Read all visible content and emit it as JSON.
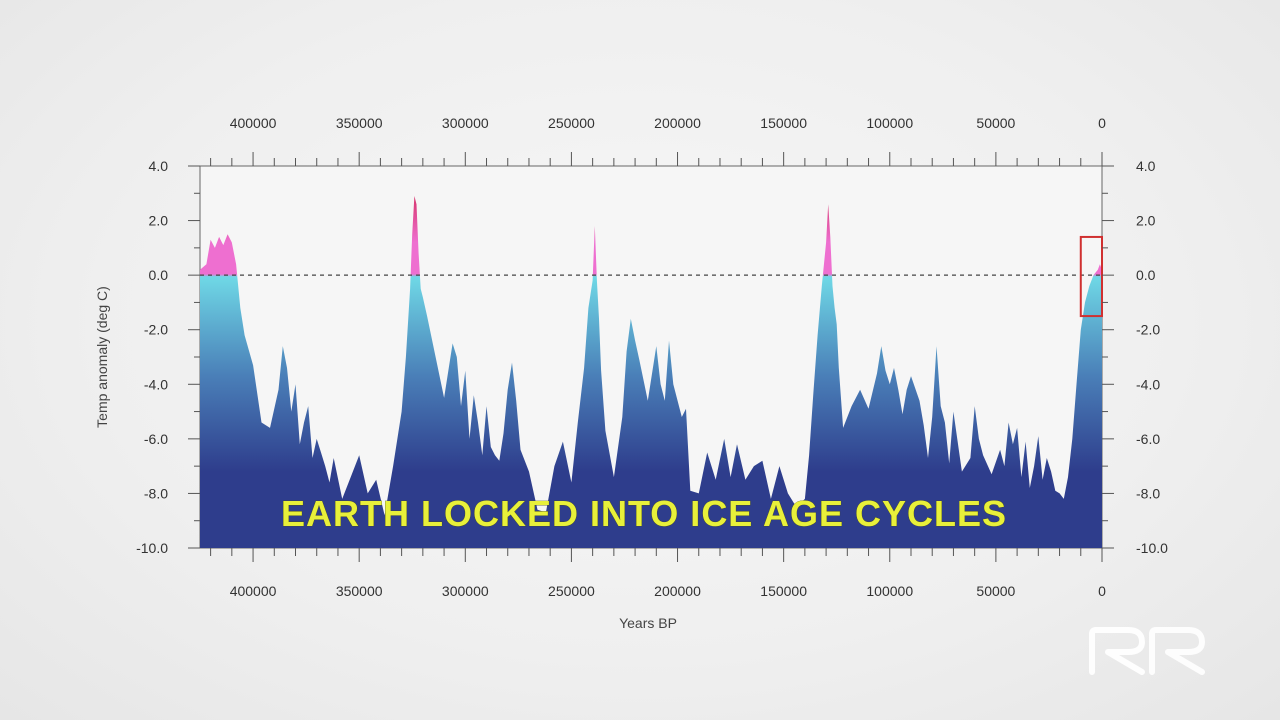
{
  "chart_data": {
    "type": "area",
    "title": "",
    "caption": "EARTH LOCKED INTO ICE AGE CYCLES",
    "xlabel": "Years BP",
    "ylabel": "Temp anomaly (deg C)",
    "xlim": [
      425000,
      0
    ],
    "ylim": [
      -10.0,
      4.0
    ],
    "x_ticks": [
      400000,
      350000,
      300000,
      250000,
      200000,
      150000,
      100000,
      50000,
      0
    ],
    "x_tick_labels": [
      "400000",
      "350000",
      "300000",
      "250000",
      "200000",
      "150000",
      "100000",
      "50000",
      "0"
    ],
    "y_ticks": [
      4.0,
      2.0,
      0.0,
      -2.0,
      -4.0,
      -6.0,
      -8.0,
      -10.0
    ],
    "y_tick_labels": [
      "4.0",
      "2.0",
      "0.0",
      "-2.0",
      "-4.0",
      "-6.0",
      "-8.0",
      "-10.0"
    ],
    "reference_line": 0.0,
    "highlight_box": {
      "x": [
        10000,
        0
      ],
      "y": [
        -1.5,
        1.4
      ]
    },
    "colors": {
      "cold": "#2e3d8c",
      "mid": "#4a7fb8",
      "cool": "#6fd8e6",
      "warm": "#ee6fd0",
      "hot": "#c8102e",
      "box": "#d03030"
    },
    "series": [
      {
        "x": [
          425000,
          422000,
          420000,
          418000,
          416000,
          414000,
          412000,
          410000,
          408000,
          406000,
          404000,
          400000,
          396000,
          392000,
          388000,
          386000,
          384000,
          382000,
          380000,
          378000,
          376000,
          374000,
          372000,
          370000,
          368000,
          366000,
          364000,
          362000,
          358000,
          354000,
          350000,
          346000,
          342000,
          338000,
          334000,
          330000,
          328000,
          326000,
          325000,
          324000,
          323000,
          322000,
          321000,
          320000,
          318000,
          314000,
          310000,
          306000,
          304000,
          302000,
          300000,
          298000,
          296000,
          294000,
          292000,
          290000,
          288000,
          286000,
          284000,
          282000,
          280000,
          278000,
          276000,
          274000,
          270000,
          266000,
          262000,
          258000,
          254000,
          250000,
          247000,
          244000,
          242000,
          240000,
          239000,
          238000,
          237000,
          236000,
          234000,
          230000,
          226000,
          224000,
          222000,
          220000,
          218000,
          214000,
          210000,
          208000,
          206000,
          204000,
          202000,
          198000,
          196000,
          194000,
          190000,
          186000,
          182000,
          178000,
          175000,
          172000,
          168000,
          164000,
          160000,
          156000,
          152000,
          148000,
          144000,
          140000,
          138000,
          136000,
          134000,
          132000,
          130000,
          129000,
          128000,
          127000,
          126000,
          125000,
          124000,
          122000,
          118000,
          114000,
          110000,
          106000,
          104000,
          102000,
          100000,
          98000,
          96000,
          94000,
          92000,
          90000,
          86000,
          84000,
          82000,
          80000,
          78000,
          76000,
          74000,
          72000,
          70000,
          66000,
          62000,
          60000,
          58000,
          56000,
          52000,
          48000,
          46000,
          44000,
          42000,
          40000,
          38000,
          36000,
          34000,
          32000,
          30000,
          28000,
          26000,
          24000,
          22000,
          20000,
          18000,
          16000,
          14000,
          12000,
          10000,
          8000,
          6000,
          4000,
          2000,
          1000,
          0
        ],
        "y": [
          0.2,
          0.4,
          1.3,
          1.0,
          1.4,
          1.1,
          1.5,
          1.2,
          0.4,
          -1.2,
          -2.2,
          -3.3,
          -5.4,
          -5.6,
          -4.2,
          -2.6,
          -3.4,
          -5.0,
          -4.0,
          -6.2,
          -5.4,
          -4.8,
          -6.7,
          -6.0,
          -6.5,
          -7.0,
          -7.6,
          -6.7,
          -8.2,
          -7.4,
          -6.6,
          -8.0,
          -7.5,
          -8.8,
          -7.0,
          -5.0,
          -3.0,
          -0.5,
          1.5,
          2.9,
          2.6,
          0.8,
          -0.5,
          -0.8,
          -1.5,
          -3.0,
          -4.5,
          -2.5,
          -3.0,
          -4.8,
          -3.5,
          -6.0,
          -4.4,
          -5.4,
          -6.6,
          -4.8,
          -6.3,
          -6.6,
          -6.8,
          -5.8,
          -4.2,
          -3.2,
          -4.6,
          -6.4,
          -7.2,
          -8.6,
          -8.7,
          -7.0,
          -6.1,
          -7.6,
          -5.4,
          -3.4,
          -1.2,
          -0.2,
          1.8,
          -0.2,
          -1.6,
          -3.5,
          -5.7,
          -7.4,
          -5.2,
          -2.8,
          -1.6,
          -2.4,
          -3.1,
          -4.6,
          -2.6,
          -4.0,
          -4.6,
          -2.4,
          -4.0,
          -5.2,
          -4.9,
          -7.9,
          -8.0,
          -6.5,
          -7.5,
          -6.0,
          -7.4,
          -6.2,
          -7.5,
          -7.0,
          -6.8,
          -8.2,
          -7.0,
          -8.0,
          -8.5,
          -8.2,
          -6.6,
          -4.3,
          -2.2,
          -0.4,
          1.2,
          2.6,
          1.4,
          -0.4,
          -1.2,
          -1.8,
          -3.4,
          -5.6,
          -4.8,
          -4.2,
          -4.9,
          -3.6,
          -2.6,
          -3.5,
          -4.0,
          -3.4,
          -4.2,
          -5.1,
          -4.2,
          -3.7,
          -4.6,
          -5.5,
          -6.7,
          -5.2,
          -2.6,
          -4.8,
          -5.4,
          -6.9,
          -5.0,
          -7.2,
          -6.7,
          -4.8,
          -6.0,
          -6.6,
          -7.3,
          -6.4,
          -7.0,
          -5.4,
          -6.2,
          -5.6,
          -7.4,
          -6.1,
          -7.8,
          -7.0,
          -5.9,
          -7.5,
          -6.7,
          -7.2,
          -7.9,
          -8.0,
          -8.2,
          -7.4,
          -6.0,
          -4.0,
          -2.0,
          -1.0,
          -0.4,
          0.0,
          0.2,
          0.4,
          0.2
        ]
      }
    ]
  },
  "watermark": {
    "text": "RR"
  }
}
